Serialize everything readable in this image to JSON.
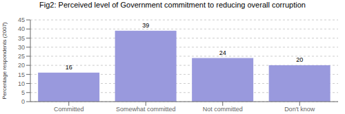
{
  "chart_data": {
    "type": "bar",
    "title": "Fig2: Perceived level of Government commitment to reducing overall corruption",
    "categories": [
      "Committed",
      "Somewhat committed",
      "Not committed",
      "Don't know"
    ],
    "values": [
      16,
      39,
      24,
      20
    ],
    "color": "#9999dd",
    "ylabel": "Percentage respondents (2007)",
    "ylim": [
      0,
      45
    ],
    "yticks": [
      0,
      5,
      10,
      15,
      20,
      25,
      30,
      35,
      40,
      45
    ],
    "grid": true,
    "data_labels": true
  }
}
